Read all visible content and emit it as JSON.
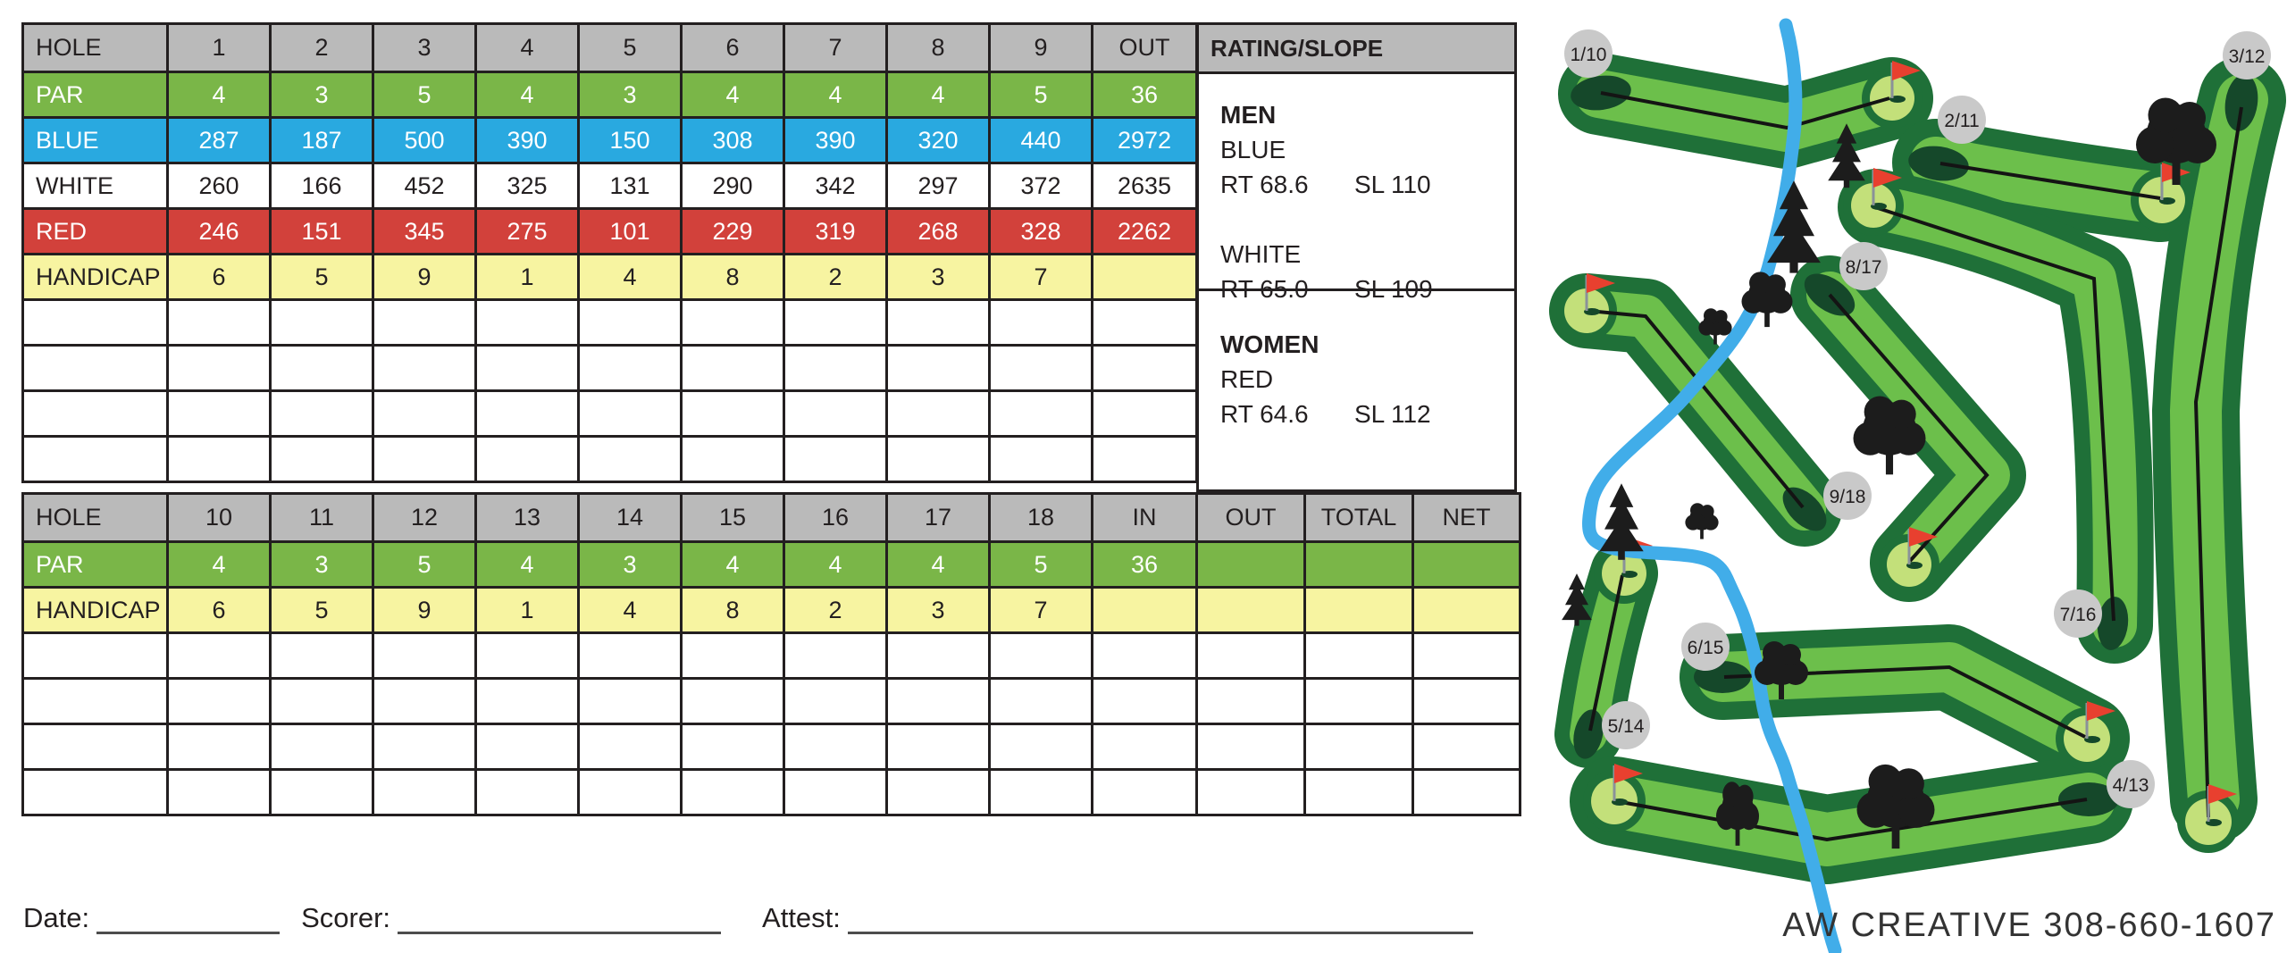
{
  "front": {
    "header": [
      "HOLE",
      "1",
      "2",
      "3",
      "4",
      "5",
      "6",
      "7",
      "8",
      "9",
      "OUT"
    ],
    "rows": [
      {
        "label": "PAR",
        "style": "par",
        "values": [
          "4",
          "3",
          "5",
          "4",
          "3",
          "4",
          "4",
          "4",
          "5",
          "36"
        ]
      },
      {
        "label": "BLUE",
        "style": "blue",
        "values": [
          "287",
          "187",
          "500",
          "390",
          "150",
          "308",
          "390",
          "320",
          "440",
          "2972"
        ]
      },
      {
        "label": "WHITE",
        "style": "white",
        "values": [
          "260",
          "166",
          "452",
          "325",
          "131",
          "290",
          "342",
          "297",
          "372",
          "2635"
        ]
      },
      {
        "label": "RED",
        "style": "red",
        "values": [
          "246",
          "151",
          "345",
          "275",
          "101",
          "229",
          "319",
          "268",
          "328",
          "2262"
        ]
      },
      {
        "label": "HANDICAP",
        "style": "handicap",
        "values": [
          "6",
          "5",
          "9",
          "1",
          "4",
          "8",
          "2",
          "3",
          "7",
          ""
        ]
      },
      {
        "label": "",
        "style": "blank",
        "values": [
          "",
          "",
          "",
          "",
          "",
          "",
          "",
          "",
          "",
          ""
        ]
      },
      {
        "label": "",
        "style": "blank",
        "values": [
          "",
          "",
          "",
          "",
          "",
          "",
          "",
          "",
          "",
          ""
        ]
      },
      {
        "label": "",
        "style": "blank",
        "values": [
          "",
          "",
          "",
          "",
          "",
          "",
          "",
          "",
          "",
          ""
        ]
      },
      {
        "label": "",
        "style": "blank",
        "values": [
          "",
          "",
          "",
          "",
          "",
          "",
          "",
          "",
          "",
          ""
        ]
      }
    ]
  },
  "back": {
    "header": [
      "HOLE",
      "10",
      "11",
      "12",
      "13",
      "14",
      "15",
      "16",
      "17",
      "18",
      "IN",
      "OUT",
      "TOTAL",
      "NET"
    ],
    "rows": [
      {
        "label": "PAR",
        "style": "par",
        "values": [
          "4",
          "3",
          "5",
          "4",
          "3",
          "4",
          "4",
          "4",
          "5",
          "36",
          "",
          "",
          ""
        ]
      },
      {
        "label": "HANDICAP",
        "style": "handicap",
        "values": [
          "6",
          "5",
          "9",
          "1",
          "4",
          "8",
          "2",
          "3",
          "7",
          "",
          "",
          "",
          ""
        ]
      },
      {
        "label": "",
        "style": "blank",
        "values": [
          "",
          "",
          "",
          "",
          "",
          "",
          "",
          "",
          "",
          "",
          "",
          "",
          ""
        ]
      },
      {
        "label": "",
        "style": "blank",
        "values": [
          "",
          "",
          "",
          "",
          "",
          "",
          "",
          "",
          "",
          "",
          "",
          "",
          ""
        ]
      },
      {
        "label": "",
        "style": "blank",
        "values": [
          "",
          "",
          "",
          "",
          "",
          "",
          "",
          "",
          "",
          "",
          "",
          "",
          ""
        ]
      },
      {
        "label": "",
        "style": "blank",
        "values": [
          "",
          "",
          "",
          "",
          "",
          "",
          "",
          "",
          "",
          "",
          "",
          "",
          ""
        ]
      }
    ]
  },
  "rating": {
    "title": "RATING/SLOPE",
    "men": {
      "heading": "MEN",
      "tee": "BLUE",
      "rt": "RT 68.6",
      "sl": "SL 110",
      "tee2": "WHITE",
      "rt2": "RT 65.0",
      "sl2": "SL 109"
    },
    "women": {
      "heading": "WOMEN",
      "tee": "RED",
      "rt": "RT 64.6",
      "sl": "SL 112"
    }
  },
  "footer": {
    "date_label": "Date:",
    "scorer_label": "Scorer:",
    "attest_label": "Attest:"
  },
  "map": {
    "credit": "AW CREATIVE 308-660-1607",
    "hole_markers": [
      "1/10",
      "2/11",
      "3/12",
      "4/13",
      "5/14",
      "6/15",
      "7/16",
      "8/17",
      "9/18"
    ],
    "colors": {
      "rough": "#1f7038",
      "fairway": "#6cbf4b",
      "putting_green": "#c3e07a",
      "tee_box": "#15482a",
      "river": "#41ade9",
      "flag": "#e8402f",
      "marker_bubble": "#c9c9c9"
    }
  }
}
